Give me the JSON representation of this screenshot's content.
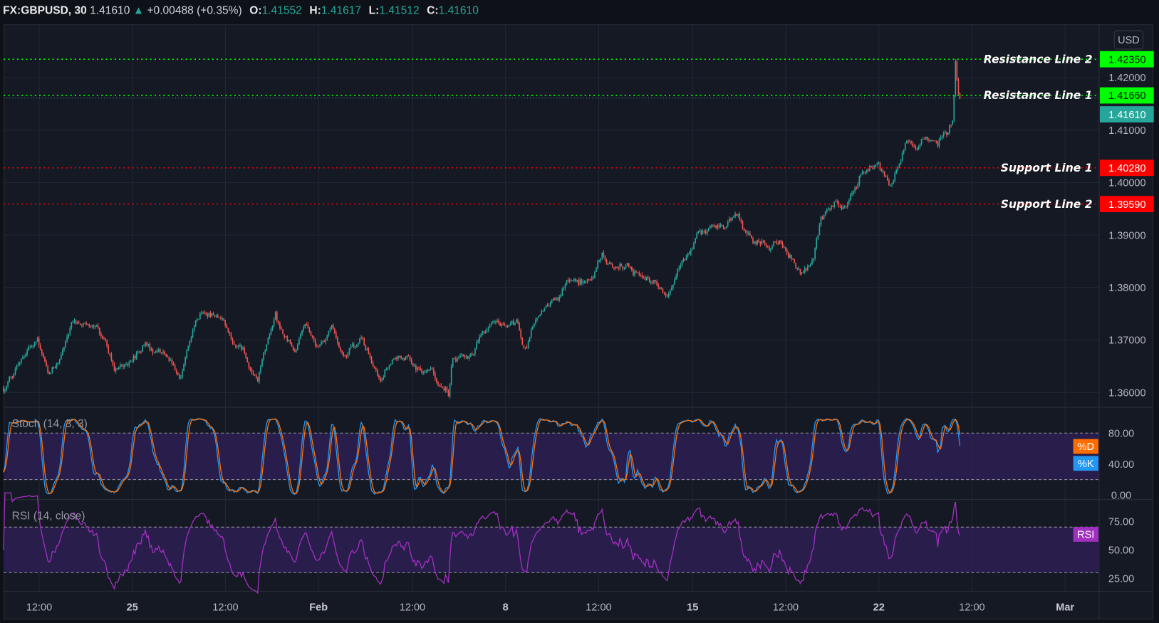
{
  "header": {
    "symbol": "FX:GBPUSD, 30",
    "last": "1.41610",
    "change": "+0.00488 (+0.35%)",
    "o_label": "O:",
    "o": "1.41552",
    "h_label": "H:",
    "h": "1.41617",
    "l_label": "L:",
    "l": "1.41512",
    "c_label": "C:",
    "c": "1.41610"
  },
  "currency_button": "USD",
  "colors": {
    "background": "#151924",
    "up_candle": "#26a69a",
    "down_candle": "#ef5350",
    "resistance": "#00ff00",
    "support": "#ff0000",
    "last_price": "#26a69a",
    "stoch_k": "#2196f3",
    "stoch_d": "#ff6d00",
    "rsi": "#a12fbf",
    "band_fill": "#2c1f52"
  },
  "chart_data": {
    "type": "candlestick",
    "symbol": "FX:GBPUSD",
    "interval": "30",
    "ylim": [
      1.3575,
      1.427
    ],
    "grid": true,
    "price_ticks": [
      "1.42000",
      "1.41000",
      "1.40000",
      "1.39000",
      "1.38000",
      "1.37000",
      "1.36000"
    ],
    "time_ticks": [
      "12:00",
      "25",
      "12:00",
      "Feb",
      "12:00",
      "8",
      "12:00",
      "15",
      "12:00",
      "22",
      "12:00",
      "Mar"
    ],
    "last_price": 1.4161,
    "levels": [
      {
        "label": "Resistance Line 2",
        "price": 1.4235,
        "value_text": "1.42350",
        "kind": "resistance"
      },
      {
        "label": "Resistance Line 1",
        "price": 1.4166,
        "value_text": "1.41660",
        "kind": "resistance"
      },
      {
        "label": "Support Line 1",
        "price": 1.4028,
        "value_text": "1.40280",
        "kind": "support"
      },
      {
        "label": "Support Line 2",
        "price": 1.3959,
        "value_text": "1.39590",
        "kind": "support"
      }
    ],
    "last_price_text": "1.41610",
    "price_path": [
      [
        "2021-01-19 13:00",
        1.361
      ],
      [
        "2021-01-20 11:00",
        1.37
      ],
      [
        "2021-01-20 18:00",
        1.363
      ],
      [
        "2021-01-21 10:00",
        1.3735
      ],
      [
        "2021-01-22 01:00",
        1.3725
      ],
      [
        "2021-01-22 13:00",
        1.3645
      ],
      [
        "2021-01-25 08:00",
        1.369
      ],
      [
        "2021-01-25 17:00",
        1.367
      ],
      [
        "2021-01-26 07:00",
        1.362
      ],
      [
        "2021-01-26 17:00",
        1.374
      ],
      [
        "2021-01-27 10:00",
        1.3745
      ],
      [
        "2021-01-27 19:00",
        1.368
      ],
      [
        "2021-01-28 09:00",
        1.364
      ],
      [
        "2021-01-28 20:00",
        1.374
      ],
      [
        "2021-01-29 09:00",
        1.368
      ],
      [
        "2021-01-29 15:00",
        1.374
      ],
      [
        "2021-01-29 23:00",
        1.3695
      ],
      [
        "2021-02-01 08:00",
        1.374
      ],
      [
        "2021-02-01 16:00",
        1.367
      ],
      [
        "2021-02-02 04:00",
        1.37
      ],
      [
        "2021-02-02 16:00",
        1.362
      ],
      [
        "2021-02-03 04:00",
        1.368
      ],
      [
        "2021-02-03 13:00",
        1.365
      ],
      [
        "2021-02-04 01:00",
        1.364
      ],
      [
        "2021-02-04 12:00",
        1.359
      ],
      [
        "2021-02-04 14:00",
        1.366
      ],
      [
        "2021-02-05 04:00",
        1.368
      ],
      [
        "2021-02-05 15:00",
        1.373
      ],
      [
        "2021-02-08 08:00",
        1.3735
      ],
      [
        "2021-02-08 13:00",
        1.369
      ],
      [
        "2021-02-08 22:00",
        1.3755
      ],
      [
        "2021-02-09 13:00",
        1.379
      ],
      [
        "2021-02-10 08:00",
        1.382
      ],
      [
        "2021-02-10 15:00",
        1.3855
      ],
      [
        "2021-02-10 22:00",
        1.383
      ],
      [
        "2021-02-11 08:00",
        1.3845
      ],
      [
        "2021-02-11 22:00",
        1.381
      ],
      [
        "2021-02-12 10:00",
        1.3785
      ],
      [
        "2021-02-12 17:00",
        1.385
      ],
      [
        "2021-02-15 05:00",
        1.39
      ],
      [
        "2021-02-15 19:00",
        1.391
      ],
      [
        "2021-02-16 05:00",
        1.3945
      ],
      [
        "2021-02-16 16:00",
        1.39
      ],
      [
        "2021-02-17 02:00",
        1.388
      ],
      [
        "2021-02-17 09:00",
        1.3895
      ],
      [
        "2021-02-17 19:00",
        1.3845
      ],
      [
        "2021-02-18 07:00",
        1.385
      ],
      [
        "2021-02-18 11:00",
        1.393
      ],
      [
        "2021-02-18 21:00",
        1.396
      ],
      [
        "2021-02-19 04:00",
        1.395
      ],
      [
        "2021-02-19 13:00",
        1.402
      ],
      [
        "2021-02-22 01:00",
        1.403
      ],
      [
        "2021-02-22 09:00",
        1.399
      ],
      [
        "2021-02-22 18:00",
        1.408
      ],
      [
        "2021-02-23 06:00",
        1.408
      ],
      [
        "2021-02-23 15:00",
        1.407
      ],
      [
        "2021-02-24 01:00",
        1.412
      ],
      [
        "2021-02-24 02:00",
        1.4235
      ],
      [
        "2021-02-24 04:00",
        1.4175
      ],
      [
        "2021-02-24 06:00",
        1.4161
      ]
    ],
    "indicators": {
      "stoch": {
        "title": "Stoch (14, 3, 3)",
        "ticks": [
          "80.00",
          "40.00",
          "0.00"
        ],
        "bands": [
          20,
          80
        ],
        "legend": [
          "%D",
          "%K"
        ]
      },
      "rsi": {
        "title": "RSI (14, close)",
        "ticks": [
          "75.00",
          "50.00",
          "25.00"
        ],
        "bands": [
          30,
          70
        ],
        "legend": [
          "RSI"
        ]
      }
    }
  }
}
